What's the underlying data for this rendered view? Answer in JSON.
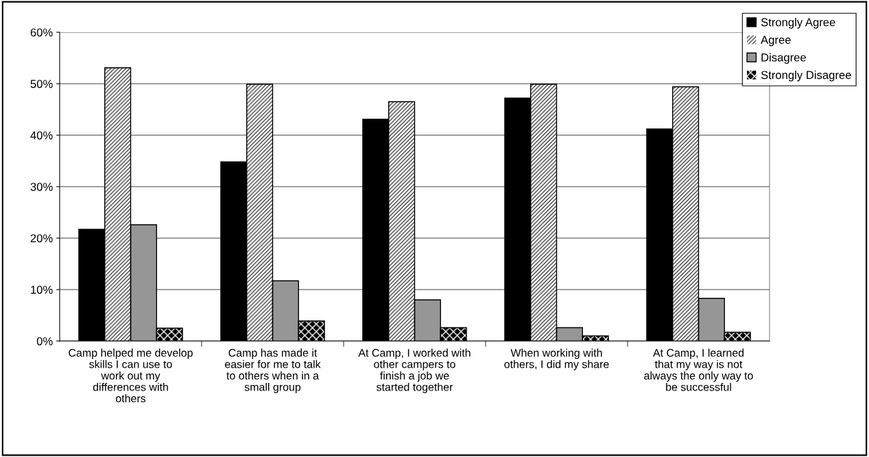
{
  "chart_data": {
    "type": "bar",
    "categories": [
      "Camp helped me develop skills I can use to work out my differences with others",
      "Camp has made it easier for me to talk to others when in a small group",
      "At Camp, I worked with other campers to finish a job we started together",
      "When working with others, I did my share",
      "At Camp, I learned that my way is not always the only way to be successful"
    ],
    "series": [
      {
        "name": "Strongly Agree",
        "color": "#000000",
        "values": [
          21.7,
          34.8,
          43.1,
          47.2,
          41.2
        ]
      },
      {
        "name": "Agree",
        "color": "#404040",
        "values": [
          53.1,
          49.9,
          46.5,
          49.9,
          49.4
        ]
      },
      {
        "name": "Disagree",
        "color": "#969696",
        "values": [
          22.6,
          11.7,
          8.0,
          2.6,
          8.3
        ]
      },
      {
        "name": "Strongly Disagree",
        "color": "#000000",
        "values": [
          2.5,
          3.9,
          2.6,
          1.0,
          1.7
        ]
      }
    ],
    "ylim": [
      0,
      60
    ],
    "yticks": [
      {
        "value": 0,
        "label": "0%"
      },
      {
        "value": 10,
        "label": "10%"
      },
      {
        "value": 20,
        "label": "20%"
      },
      {
        "value": 30,
        "label": "30%"
      },
      {
        "value": 40,
        "label": "40%"
      },
      {
        "value": 50,
        "label": "50%"
      },
      {
        "value": 60,
        "label": "60%"
      }
    ],
    "grid": "y",
    "legend": "top right"
  }
}
